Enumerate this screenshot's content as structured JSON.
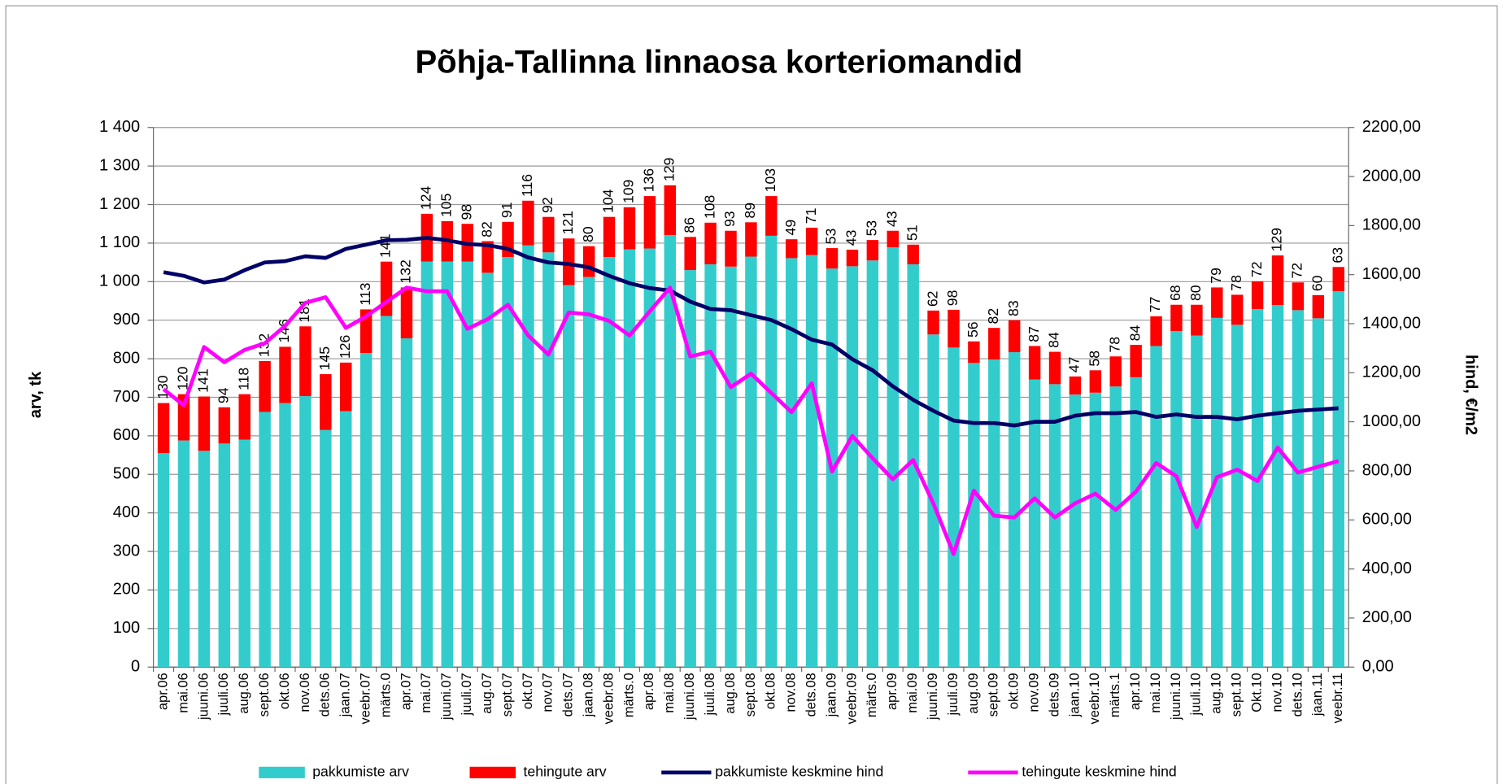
{
  "chart_data": {
    "type": "bar-line",
    "title": "Põhja-Tallinna linnaosa korteriomandid",
    "y_label": "arv, tk",
    "y2_label": "hind, €/m2",
    "categories": [
      "apr.06",
      "mai.06",
      "juuni.06",
      "juuli.06",
      "aug.06",
      "sept.06",
      "okt.06",
      "nov.06",
      "dets.06",
      "jaan.07",
      "veebr.07",
      "märts.0",
      "apr.07",
      "mai.07",
      "juuni.07",
      "juuli.07",
      "aug.07",
      "sept.07",
      "okt.07",
      "nov.07",
      "dets.07",
      "jaan.08",
      "veebr.08",
      "märts.0",
      "apr.08",
      "mai.08",
      "juuni.08",
      "juuli.08",
      "aug.08",
      "sept.08",
      "okt.08",
      "nov.08",
      "dets.08",
      "jaan.09",
      "veebr.09",
      "märts.0",
      "apr.09",
      "mai.09",
      "juuni.09",
      "juuli.09",
      "aug.09",
      "sept.09",
      "okt.09",
      "nov.09",
      "dets.09",
      "jaan.10",
      "veebr.10",
      "märts.1",
      "apr.10",
      "mai.10",
      "juuni.10",
      "juuli.10",
      "aug.10",
      "sept.10",
      "Okt.10",
      "nov.10",
      "dets.10",
      "jaan.11",
      "veebr.11"
    ],
    "series": [
      {
        "name": "pakkumiste arv",
        "color": "#33cccc",
        "kind": "bar",
        "values": [
          555,
          588,
          561,
          580,
          590,
          662,
          685,
          703,
          615,
          664,
          815,
          911,
          853,
          1052,
          1052,
          1052,
          1023,
          1064,
          1094,
          1076,
          991,
          1012,
          1064,
          1084,
          1086,
          1121,
          1030,
          1045,
          1039,
          1065,
          1119,
          1061,
          1069,
          1034,
          1040,
          1055,
          1089,
          1045,
          863,
          829,
          789,
          798,
          817,
          746,
          734,
          707,
          712,
          728,
          752,
          833,
          872,
          860,
          906,
          888,
          929,
          939,
          926,
          905,
          975
        ]
      },
      {
        "name": "tehingute arv",
        "color": "#ff0000",
        "kind": "bar",
        "values": [
          130,
          120,
          141,
          94,
          118,
          132,
          146,
          181,
          145,
          126,
          113,
          141,
          132,
          124,
          105,
          98,
          82,
          91,
          116,
          92,
          121,
          80,
          104,
          109,
          136,
          129,
          86,
          108,
          93,
          89,
          103,
          49,
          71,
          53,
          43,
          53,
          43,
          51,
          62,
          98,
          56,
          82,
          83,
          87,
          84,
          47,
          58,
          78,
          84,
          77,
          68,
          80,
          79,
          78,
          72,
          129,
          72,
          60,
          63
        ]
      },
      {
        "name": "pakkumiste keskmine hind",
        "color": "#000066",
        "kind": "line",
        "axis": "y2",
        "values": [
          1610,
          1595,
          1568,
          1580,
          1618,
          1650,
          1655,
          1675,
          1668,
          1705,
          1722,
          1740,
          1742,
          1750,
          1740,
          1725,
          1720,
          1705,
          1670,
          1650,
          1643,
          1630,
          1595,
          1565,
          1545,
          1535,
          1490,
          1460,
          1455,
          1435,
          1415,
          1378,
          1335,
          1315,
          1255,
          1210,
          1145,
          1090,
          1045,
          1005,
          995,
          995,
          985,
          1000,
          1000,
          1025,
          1035,
          1035,
          1040,
          1020,
          1030,
          1020,
          1020,
          1010,
          1025,
          1035,
          1045,
          1050,
          1055
        ]
      },
      {
        "name": "tehingute keskmine hind",
        "color": "#ff00ff",
        "kind": "line",
        "axis": "y2",
        "values": [
          1133,
          1067,
          1305,
          1243,
          1293,
          1320,
          1391,
          1485,
          1508,
          1383,
          1430,
          1489,
          1547,
          1532,
          1532,
          1379,
          1418,
          1477,
          1352,
          1274,
          1446,
          1438,
          1411,
          1352,
          1450,
          1547,
          1266,
          1286,
          1141,
          1196,
          1118,
          1039,
          1157,
          797,
          942,
          852,
          766,
          844,
          668,
          461,
          719,
          617,
          610,
          688,
          610,
          668,
          707,
          641,
          715,
          832,
          778,
          571,
          774,
          805,
          758,
          895,
          793,
          817,
          840
        ]
      }
    ],
    "ylim": [
      0,
      1400
    ],
    "yticks": [
      0,
      100,
      200,
      300,
      400,
      500,
      600,
      700,
      800,
      900,
      {
        "value": 1000,
        "label": "1 000"
      },
      {
        "value": 1100,
        "label": "1 100"
      },
      {
        "value": 1200,
        "label": "1 200"
      },
      {
        "value": 1300,
        "label": "1 300"
      },
      {
        "value": 1400,
        "label": "1 400"
      }
    ],
    "y2lim": [
      0,
      2200
    ],
    "y2ticks": [
      {
        "value": 0,
        "label": "0,00"
      },
      {
        "value": 200,
        "label": "200,00"
      },
      {
        "value": 400,
        "label": "400,00"
      },
      {
        "value": 600,
        "label": "600,00"
      },
      {
        "value": 800,
        "label": "800,00"
      },
      {
        "value": 1000,
        "label": "1000,00"
      },
      {
        "value": 1200,
        "label": "1200,00"
      },
      {
        "value": 1400,
        "label": "1400,00"
      },
      {
        "value": 1600,
        "label": "1600,00"
      },
      {
        "value": 1800,
        "label": "1800,00"
      },
      {
        "value": 2000,
        "label": "2000,00"
      },
      {
        "value": 2200,
        "label": "2200,00"
      }
    ],
    "grid": true,
    "legend": "bottom"
  }
}
